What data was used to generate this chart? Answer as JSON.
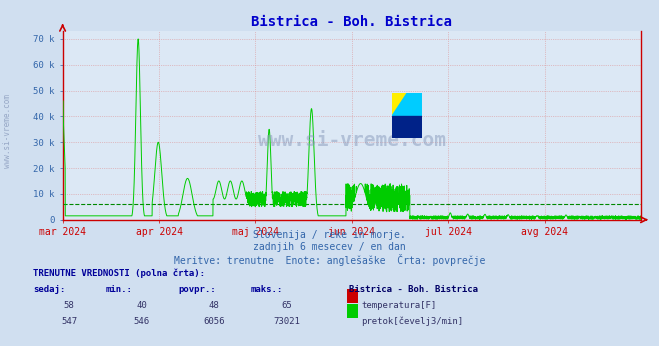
{
  "title": "Bistrica - Boh. Bistrica",
  "title_color": "#0000cc",
  "title_fontsize": 10,
  "bg_color": "#d0dff0",
  "plot_bg_color": "#dce8f5",
  "watermark_text": "www.si-vreme.com",
  "subtitle_lines": [
    "Slovenija / reke in morje.",
    "zadnjih 6 mesecev / en dan",
    "Meritve: trenutne  Enote: anglešaške  Črta: povprečje"
  ],
  "subtitle_color": "#3366aa",
  "subtitle_fontsize": 7,
  "xaxis_labels": [
    "mar 2024",
    "apr 2024",
    "maj 2024",
    "jun 2024",
    "jul 2024",
    "avg 2024"
  ],
  "xaxis_label_color": "#cc0000",
  "yaxis_label_color": "#3366aa",
  "yticks": [
    0,
    10000,
    20000,
    30000,
    40000,
    50000,
    60000,
    70000
  ],
  "ytick_labels": [
    "0",
    "10 k",
    "20 k",
    "30 k",
    "40 k",
    "50 k",
    "60 k",
    "70 k"
  ],
  "ylim": [
    0,
    73000
  ],
  "grid_color": "#dd8888",
  "axis_color": "#cc0000",
  "flow_color": "#00cc00",
  "temp_color": "#cc0000",
  "avg_flow_color": "#008800",
  "avg_flow_value": 6056,
  "watermark_color": "#8899bb",
  "table_header": "TRENUTNE VREDNOSTI (polna črta):",
  "table_cols": [
    "sedaj:",
    "min.:",
    "povpr.:",
    "maks.:"
  ],
  "table_header_color": "#000099",
  "table_col_header_color": "#000099",
  "row_temp": {
    "sedaj": 58,
    "min": 40,
    "povpr": 48,
    "maks": 65,
    "label": "temperatura[F]",
    "color": "#cc0000"
  },
  "row_flow": {
    "sedaj": 547,
    "min": 546,
    "povpr": 6056,
    "maks": 73021,
    "label": "pretok[čevelj3/min]",
    "color": "#00cc00"
  },
  "station_label": "Bistrica - Boh. Bistrica",
  "station_label_color": "#000066"
}
